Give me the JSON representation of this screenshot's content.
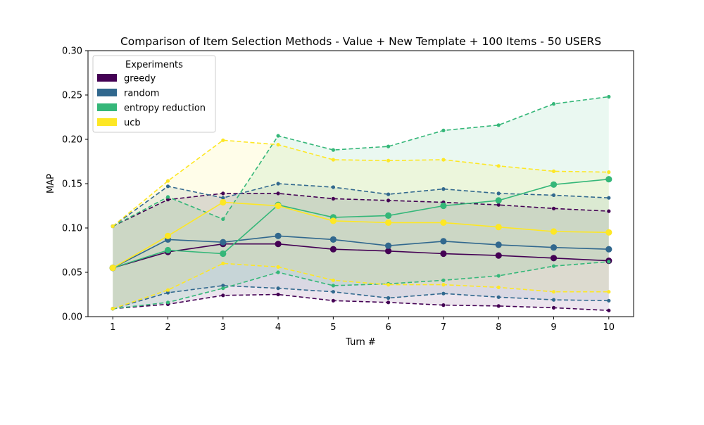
{
  "chart_data": {
    "type": "line",
    "title": "Comparison of Item Selection Methods - Value + New Template + 100 Items - 50 USERS",
    "xlabel": "Turn #",
    "ylabel": "MAP",
    "x": [
      1,
      2,
      3,
      4,
      5,
      6,
      7,
      8,
      9,
      10
    ],
    "xlim": [
      0.55,
      10.45
    ],
    "ylim": [
      0,
      0.3
    ],
    "x_ticks": [
      "1",
      "2",
      "3",
      "4",
      "5",
      "6",
      "7",
      "8",
      "9",
      "10"
    ],
    "y_ticks": [
      "0.00",
      "0.05",
      "0.10",
      "0.15",
      "0.20",
      "0.25",
      "0.30"
    ],
    "grid": false,
    "legend": {
      "title": "Experiments",
      "position": "top-left"
    },
    "series": [
      {
        "name": "greedy",
        "color": "#440154",
        "mean": [
          0.055,
          0.073,
          0.082,
          0.082,
          0.076,
          0.074,
          0.071,
          0.069,
          0.066,
          0.063
        ],
        "upper": [
          0.102,
          0.132,
          0.139,
          0.139,
          0.133,
          0.131,
          0.129,
          0.126,
          0.122,
          0.119
        ],
        "lower": [
          0.009,
          0.014,
          0.024,
          0.025,
          0.018,
          0.016,
          0.013,
          0.012,
          0.01,
          0.007
        ]
      },
      {
        "name": "random",
        "color": "#31688e",
        "mean": [
          0.055,
          0.087,
          0.084,
          0.091,
          0.087,
          0.08,
          0.085,
          0.081,
          0.078,
          0.076
        ],
        "upper": [
          0.102,
          0.147,
          0.134,
          0.15,
          0.146,
          0.138,
          0.144,
          0.139,
          0.137,
          0.134
        ],
        "lower": [
          0.009,
          0.027,
          0.035,
          0.032,
          0.028,
          0.021,
          0.026,
          0.022,
          0.019,
          0.018
        ]
      },
      {
        "name": "entropy reduction",
        "color": "#35b779",
        "mean": [
          0.055,
          0.075,
          0.071,
          0.126,
          0.112,
          0.114,
          0.125,
          0.131,
          0.149,
          0.155
        ],
        "upper": [
          0.102,
          0.135,
          0.11,
          0.204,
          0.188,
          0.192,
          0.21,
          0.216,
          0.24,
          0.248
        ],
        "lower": [
          0.009,
          0.016,
          0.032,
          0.05,
          0.035,
          0.037,
          0.041,
          0.046,
          0.057,
          0.062
        ]
      },
      {
        "name": "ucb",
        "color": "#fde725",
        "mean": [
          0.055,
          0.091,
          0.129,
          0.125,
          0.108,
          0.106,
          0.106,
          0.101,
          0.096,
          0.095
        ],
        "upper": [
          0.102,
          0.153,
          0.199,
          0.194,
          0.177,
          0.176,
          0.177,
          0.17,
          0.164,
          0.163
        ],
        "lower": [
          0.009,
          0.03,
          0.06,
          0.056,
          0.041,
          0.036,
          0.036,
          0.033,
          0.028,
          0.028
        ]
      }
    ]
  }
}
